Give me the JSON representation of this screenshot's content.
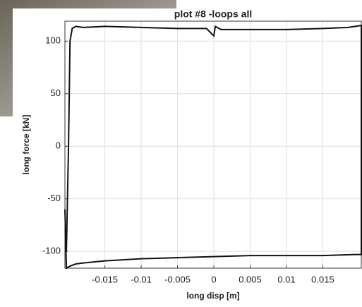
{
  "chart_data": {
    "type": "line",
    "title": "plot #8 -loops all",
    "xlabel": "long disp [m]",
    "ylabel": "long force [kN]",
    "x": [
      -0.0203,
      -0.02,
      -0.0198,
      -0.0195,
      -0.019,
      -0.018,
      -0.015,
      -0.01,
      -0.005,
      -0.001,
      0,
      0.0002,
      0.001,
      0.005,
      0.01,
      0.015,
      0.0185,
      0.0203,
      0.0203,
      0.0195,
      0.015,
      0.01,
      0.005,
      0,
      -0.005,
      -0.01,
      -0.015,
      -0.018,
      -0.019,
      -0.0198,
      -0.0203,
      -0.0205
    ],
    "series": [
      {
        "color": "#111111",
        "values": [
          -100,
          0,
          100,
          112,
          114,
          113,
          114,
          113,
          112,
          112,
          105,
          114,
          111,
          111,
          111,
          112,
          113,
          115,
          -103,
          -103,
          -104,
          -104,
          -104,
          -105,
          -106,
          -107,
          -109,
          -111,
          -112,
          -114,
          -116,
          -60
        ]
      }
    ],
    "xlim": [
      -0.0205,
      0.0203
    ],
    "ylim": [
      -116,
      119
    ],
    "xticks": [
      -0.015,
      -0.01,
      -0.005,
      0,
      0.005,
      0.01,
      0.015
    ],
    "yticks": [
      -100,
      -50,
      0,
      50,
      100
    ],
    "grid": true
  }
}
